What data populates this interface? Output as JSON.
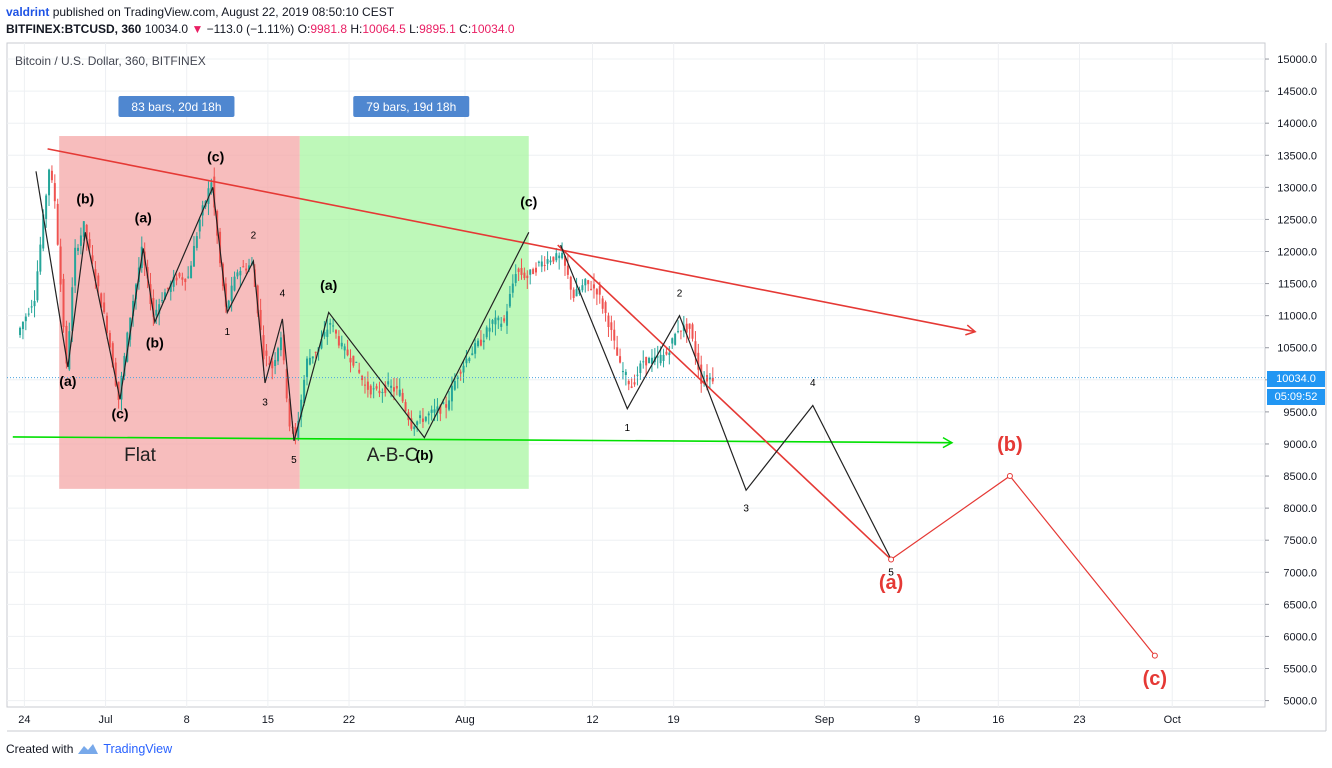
{
  "header": {
    "user": "valdrint",
    "published": "published on TradingView.com, August 22, 2019 08:50:10 CEST",
    "symbol": "BITFINEX:BTCUSD, 360",
    "last": "10034.0",
    "change": "−113.0 (−1.11%)",
    "o_label": "O:",
    "o": "9981.8",
    "h_label": "H:",
    "h": "10064.5",
    "l_label": "L:",
    "l": "9895.1",
    "c_label": "C:",
    "c": "10034.0"
  },
  "legend_title": "Bitcoin / U.S. Dollar, 360, BITFINEX",
  "price_badge": "10034.0",
  "countdown_badge": "05:09:52",
  "footer": {
    "created_with": "Created with",
    "brand": "TradingView"
  },
  "colors": {
    "up": "#26a69a",
    "down": "#ef5350",
    "red_zone": "#f4a7a7",
    "green_zone": "#a8f5a2",
    "badge": "#4f87d0",
    "trend_red": "#e53935",
    "trend_green": "#00e000",
    "projection": "#e53935"
  },
  "chart_data": {
    "type": "candlestick",
    "y_ticks": [
      5000,
      5500,
      6000,
      6500,
      7000,
      7500,
      8000,
      8500,
      9000,
      9500,
      10000,
      10500,
      11000,
      11500,
      12000,
      12500,
      13000,
      13500,
      14000,
      14500,
      15000
    ],
    "y_tick_labels": [
      "5000.0",
      "5500.0",
      "6000.0",
      "6500.0",
      "7000.0",
      "7500.0",
      "8000.0",
      "8500.0",
      "9000.0",
      "9500.0",
      "10000.0",
      "10500.0",
      "11000.0",
      "11500.0",
      "12000.0",
      "12500.0",
      "13000.0",
      "13500.0",
      "14000.0",
      "14500.0",
      "15000.0"
    ],
    "ylim": [
      4900,
      15250
    ],
    "x_tick_labels": [
      {
        "date": "2019-06-24",
        "label": "24"
      },
      {
        "date": "2019-07-01",
        "label": "Jul"
      },
      {
        "date": "2019-07-08",
        "label": "8"
      },
      {
        "date": "2019-07-15",
        "label": "15"
      },
      {
        "date": "2019-07-22",
        "label": "22"
      },
      {
        "date": "2019-08-01",
        "label": "Aug"
      },
      {
        "date": "2019-08-12",
        "label": "12"
      },
      {
        "date": "2019-08-19",
        "label": "19"
      },
      {
        "date": "2019-09-01",
        "label": "Sep"
      },
      {
        "date": "2019-09-09",
        "label": "9"
      },
      {
        "date": "2019-09-16",
        "label": "16"
      },
      {
        "date": "2019-09-23",
        "label": "23"
      },
      {
        "date": "2019-10-01",
        "label": "Oct"
      }
    ],
    "last_price": 10034.0,
    "price_path": [
      [
        "2019-06-23 12:00",
        10700
      ],
      [
        "2019-06-25 00:00",
        11300
      ],
      [
        "2019-06-26 06:00",
        13300
      ],
      [
        "2019-06-26 18:00",
        12800
      ],
      [
        "2019-06-27 18:00",
        10200
      ],
      [
        "2019-06-28 12:00",
        12000
      ],
      [
        "2019-06-29 06:00",
        12400
      ],
      [
        "2019-06-30 06:00",
        11600
      ],
      [
        "2019-07-01 06:00",
        10800
      ],
      [
        "2019-07-02 06:00",
        9700
      ],
      [
        "2019-07-03 06:00",
        11000
      ],
      [
        "2019-07-04 06:00",
        12000
      ],
      [
        "2019-07-05 06:00",
        11000
      ],
      [
        "2019-07-06 00:00",
        11300
      ],
      [
        "2019-07-07 06:00",
        11600
      ],
      [
        "2019-07-08 06:00",
        11600
      ],
      [
        "2019-07-09 06:00",
        12500
      ],
      [
        "2019-07-10 06:00",
        13100
      ],
      [
        "2019-07-11 00:00",
        11800
      ],
      [
        "2019-07-11 12:00",
        11100
      ],
      [
        "2019-07-12 12:00",
        11700
      ],
      [
        "2019-07-13 18:00",
        11800
      ],
      [
        "2019-07-14 18:00",
        10400
      ],
      [
        "2019-07-15 12:00",
        10200
      ],
      [
        "2019-07-16 06:00",
        10700
      ],
      [
        "2019-07-17 00:00",
        9300
      ],
      [
        "2019-07-17 12:00",
        9100
      ],
      [
        "2019-07-18 12:00",
        10300
      ],
      [
        "2019-07-19 12:00",
        10500
      ],
      [
        "2019-07-20 12:00",
        10900
      ],
      [
        "2019-07-21 12:00",
        10500
      ],
      [
        "2019-07-22 12:00",
        10300
      ],
      [
        "2019-07-23 12:00",
        9900
      ],
      [
        "2019-07-24 12:00",
        9800
      ],
      [
        "2019-07-25 12:00",
        9900
      ],
      [
        "2019-07-26 12:00",
        9800
      ],
      [
        "2019-07-27 12:00",
        9300
      ],
      [
        "2019-07-28 12:00",
        9400
      ],
      [
        "2019-07-29 12:00",
        9500
      ],
      [
        "2019-07-30 12:00",
        9600
      ],
      [
        "2019-07-31 12:00",
        10100
      ],
      [
        "2019-08-01 12:00",
        10400
      ],
      [
        "2019-08-02 12:00",
        10600
      ],
      [
        "2019-08-03 12:00",
        10900
      ],
      [
        "2019-08-04 12:00",
        10900
      ],
      [
        "2019-08-05 12:00",
        11700
      ],
      [
        "2019-08-06 12:00",
        11600
      ],
      [
        "2019-08-07 12:00",
        11800
      ],
      [
        "2019-08-08 12:00",
        11900
      ],
      [
        "2019-08-09 12:00",
        11900
      ],
      [
        "2019-08-10 12:00",
        11300
      ],
      [
        "2019-08-11 12:00",
        11500
      ],
      [
        "2019-08-12 12:00",
        11400
      ],
      [
        "2019-08-13 12:00",
        10900
      ],
      [
        "2019-08-14 12:00",
        10200
      ],
      [
        "2019-08-15 12:00",
        9900
      ],
      [
        "2019-08-16 12:00",
        10300
      ],
      [
        "2019-08-17 12:00",
        10300
      ],
      [
        "2019-08-18 12:00",
        10400
      ],
      [
        "2019-08-19 12:00",
        10800
      ],
      [
        "2019-08-20 12:00",
        10800
      ],
      [
        "2019-08-21 12:00",
        10000
      ],
      [
        "2019-08-22 06:00",
        10034
      ]
    ],
    "zones": [
      {
        "from": "2019-06-27 00:00",
        "to": "2019-07-17 18:00",
        "low": 8300,
        "high": 13800,
        "color": "red_zone",
        "badge": "83 bars, 20d 18h",
        "label": "Flat"
      },
      {
        "from": "2019-07-17 18:00",
        "to": "2019-08-06 12:00",
        "low": 8300,
        "high": 13800,
        "color": "green_zone",
        "badge": "79 bars, 19d 18h",
        "label": "A-B-C"
      }
    ],
    "trendlines": [
      {
        "color": "trend_red",
        "from": [
          "2019-06-26 00:00",
          13600
        ],
        "to": [
          "2019-09-14 00:00",
          10750
        ],
        "arrow": true
      },
      {
        "color": "trend_green",
        "from": [
          "2019-06-23 00:00",
          9110
        ],
        "to": [
          "2019-09-12 00:00",
          9020
        ],
        "arrow": true
      },
      {
        "color": "trend_red",
        "from": [
          "2019-08-09 00:00",
          12100
        ],
        "to": [
          "2019-09-06 18:00",
          7200
        ],
        "arrow": false
      }
    ],
    "wave_paths": [
      {
        "color": "#222",
        "points": [
          [
            "2019-06-25 00:00",
            13250
          ],
          [
            "2019-06-27 18:00",
            10200
          ],
          [
            "2019-06-29 06:00",
            12300
          ],
          [
            "2019-07-02 06:00",
            9700
          ],
          [
            "2019-07-04 06:00",
            12050
          ],
          [
            "2019-07-05 06:00",
            10900
          ],
          [
            "2019-07-10 06:00",
            13000
          ]
        ]
      },
      {
        "color": "#222",
        "points": [
          [
            "2019-07-10 06:00",
            13000
          ],
          [
            "2019-07-11 12:00",
            11050
          ],
          [
            "2019-07-13 18:00",
            11850
          ],
          [
            "2019-07-14 18:00",
            9950
          ],
          [
            "2019-07-16 06:00",
            10950
          ],
          [
            "2019-07-17 06:00",
            9050
          ]
        ]
      },
      {
        "color": "#222",
        "points": [
          [
            "2019-07-17 06:00",
            9050
          ],
          [
            "2019-07-20 06:00",
            11050
          ],
          [
            "2019-07-28 12:00",
            9100
          ],
          [
            "2019-08-06 12:00",
            12300
          ]
        ]
      },
      {
        "color": "#222",
        "points": [
          [
            "2019-08-09 06:00",
            12100
          ],
          [
            "2019-08-15 00:00",
            9550
          ],
          [
            "2019-08-19 12:00",
            11000
          ],
          [
            "2019-08-25 06:00",
            8280
          ],
          [
            "2019-08-31 00:00",
            9600
          ],
          [
            "2019-09-06 18:00",
            7200
          ]
        ]
      },
      {
        "color": "projection",
        "points": [
          [
            "2019-09-06 18:00",
            7200
          ],
          [
            "2019-09-17 00:00",
            8500
          ],
          [
            "2019-09-29 12:00",
            5700
          ]
        ]
      }
    ],
    "labels": [
      {
        "t": "(a)",
        "at": [
          "2019-06-27 18:00",
          9900
        ],
        "color": "#000",
        "size": 14
      },
      {
        "t": "(b)",
        "at": [
          "2019-06-29 06:00",
          12750
        ],
        "color": "#000",
        "size": 14
      },
      {
        "t": "(c)",
        "at": [
          "2019-07-02 06:00",
          9400
        ],
        "color": "#000",
        "size": 14
      },
      {
        "t": "(a)",
        "at": [
          "2019-07-04 06:00",
          12450
        ],
        "color": "#000",
        "size": 14
      },
      {
        "t": "(b)",
        "at": [
          "2019-07-05 06:00",
          10500
        ],
        "color": "#000",
        "size": 14
      },
      {
        "t": "(c)",
        "at": [
          "2019-07-10 12:00",
          13400
        ],
        "color": "#000",
        "size": 14
      },
      {
        "t": "1",
        "at": [
          "2019-07-11 12:00",
          10700
        ],
        "color": "#000",
        "size": 10
      },
      {
        "t": "2",
        "at": [
          "2019-07-13 18:00",
          12200
        ],
        "color": "#000",
        "size": 10
      },
      {
        "t": "3",
        "at": [
          "2019-07-14 18:00",
          9600
        ],
        "color": "#000",
        "size": 10
      },
      {
        "t": "4",
        "at": [
          "2019-07-16 06:00",
          11300
        ],
        "color": "#000",
        "size": 10
      },
      {
        "t": "5",
        "at": [
          "2019-07-17 06:00",
          8700
        ],
        "color": "#000",
        "size": 10
      },
      {
        "t": "(a)",
        "at": [
          "2019-07-20 06:00",
          11400
        ],
        "color": "#000",
        "size": 14
      },
      {
        "t": "(b)",
        "at": [
          "2019-07-28 12:00",
          8750
        ],
        "color": "#000",
        "size": 14
      },
      {
        "t": "(c)",
        "at": [
          "2019-08-06 12:00",
          12700
        ],
        "color": "#000",
        "size": 14
      },
      {
        "t": "1",
        "at": [
          "2019-08-15 00:00",
          9200
        ],
        "color": "#000",
        "size": 10
      },
      {
        "t": "2",
        "at": [
          "2019-08-19 12:00",
          11300
        ],
        "color": "#000",
        "size": 10
      },
      {
        "t": "3",
        "at": [
          "2019-08-25 06:00",
          7950
        ],
        "color": "#000",
        "size": 10
      },
      {
        "t": "4",
        "at": [
          "2019-08-31 00:00",
          9900
        ],
        "color": "#000",
        "size": 10
      },
      {
        "t": "5",
        "at": [
          "2019-09-06 18:00",
          6950
        ],
        "color": "#000",
        "size": 10
      },
      {
        "t": "(a)",
        "at": [
          "2019-09-06 18:00",
          6740
        ],
        "color": "projection",
        "size": 20
      },
      {
        "t": "(b)",
        "at": [
          "2019-09-17 00:00",
          8890
        ],
        "color": "projection",
        "size": 20
      },
      {
        "t": "(c)",
        "at": [
          "2019-09-29 12:00",
          5240
        ],
        "color": "projection",
        "size": 20
      }
    ]
  }
}
